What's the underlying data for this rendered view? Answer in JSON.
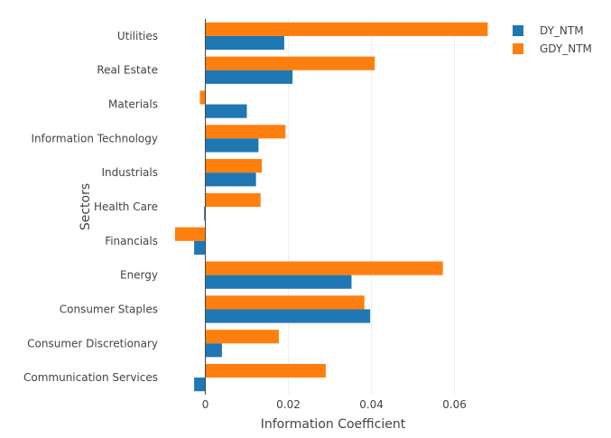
{
  "chart_data": {
    "type": "bar",
    "orientation": "horizontal",
    "categories": [
      "Utilities",
      "Real Estate",
      "Materials",
      "Information Technology",
      "Industrials",
      "Health Care",
      "Financials",
      "Energy",
      "Consumer Staples",
      "Consumer Discretionary",
      "Communication Services"
    ],
    "series": [
      {
        "name": "DY_NTM",
        "color": "#1f77b4",
        "values": [
          0.019,
          0.021,
          0.01,
          0.0128,
          0.0122,
          -0.0003,
          -0.0027,
          0.0352,
          0.0397,
          0.004,
          -0.0027
        ]
      },
      {
        "name": "GDY_NTM",
        "color": "#ff7f0e",
        "values": [
          0.068,
          0.0408,
          -0.0013,
          0.0193,
          0.0136,
          0.0133,
          -0.0073,
          0.0572,
          0.0383,
          0.0177,
          0.029
        ]
      }
    ],
    "xlabel": "Information Coefficient",
    "ylabel": "Sectors",
    "xlim": [
      -0.0075,
      0.069
    ],
    "xticks": [
      0,
      0.02,
      0.04,
      0.06
    ],
    "xtick_labels": [
      "0",
      "0.02",
      "0.04",
      "0.06"
    ],
    "grid": true,
    "legend_position": "top-right"
  }
}
